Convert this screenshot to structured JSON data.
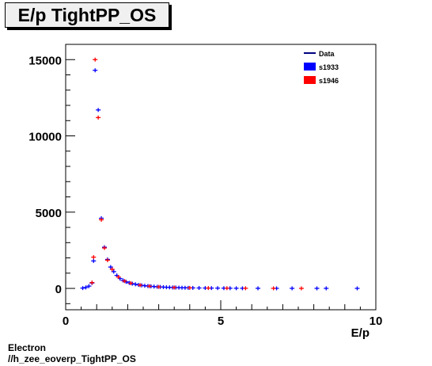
{
  "chart_data": {
    "type": "scatter",
    "title": "E/p TightPP_OS",
    "xlabel": "E/p",
    "ylabel": "",
    "xlim": [
      0,
      10
    ],
    "ylim": [
      -1400,
      16000
    ],
    "x_ticks": [
      0,
      5,
      10
    ],
    "y_ticks": [
      0,
      5000,
      10000,
      15000
    ],
    "grid": false,
    "legend_position": "top-right",
    "series": [
      {
        "name": "Data",
        "color": "#000080",
        "marker": "line",
        "points": []
      },
      {
        "name": "s1933",
        "color": "#0000ff",
        "marker": "cross",
        "points": [
          [
            0.55,
            20
          ],
          [
            0.65,
            60
          ],
          [
            0.75,
            150
          ],
          [
            0.85,
            350
          ],
          [
            0.9,
            1800
          ],
          [
            0.95,
            14300
          ],
          [
            1.05,
            11700
          ],
          [
            1.15,
            4600
          ],
          [
            1.25,
            2700
          ],
          [
            1.35,
            1900
          ],
          [
            1.45,
            1400
          ],
          [
            1.55,
            1100
          ],
          [
            1.65,
            850
          ],
          [
            1.75,
            650
          ],
          [
            1.85,
            520
          ],
          [
            1.95,
            430
          ],
          [
            2.05,
            360
          ],
          [
            2.15,
            310
          ],
          [
            2.25,
            270
          ],
          [
            2.35,
            230
          ],
          [
            2.45,
            200
          ],
          [
            2.55,
            175
          ],
          [
            2.65,
            155
          ],
          [
            2.75,
            135
          ],
          [
            2.85,
            120
          ],
          [
            2.95,
            105
          ],
          [
            3.05,
            95
          ],
          [
            3.15,
            85
          ],
          [
            3.25,
            75
          ],
          [
            3.35,
            68
          ],
          [
            3.45,
            60
          ],
          [
            3.55,
            55
          ],
          [
            3.65,
            50
          ],
          [
            3.75,
            45
          ],
          [
            3.85,
            40
          ],
          [
            3.95,
            36
          ],
          [
            4.1,
            32
          ],
          [
            4.3,
            28
          ],
          [
            4.5,
            24
          ],
          [
            4.7,
            20
          ],
          [
            4.9,
            18
          ],
          [
            5.1,
            15
          ],
          [
            5.3,
            12
          ],
          [
            5.5,
            10
          ],
          [
            5.7,
            8
          ],
          [
            6.2,
            6
          ],
          [
            6.8,
            5
          ],
          [
            7.3,
            4
          ],
          [
            8.1,
            3
          ],
          [
            8.4,
            3
          ],
          [
            9.4,
            2
          ]
        ]
      },
      {
        "name": "s1946",
        "color": "#ff0000",
        "marker": "cross",
        "points": [
          [
            0.85,
            380
          ],
          [
            0.9,
            2050
          ],
          [
            0.95,
            15000
          ],
          [
            1.05,
            11200
          ],
          [
            1.15,
            4500
          ],
          [
            1.25,
            2650
          ],
          [
            1.35,
            1850
          ],
          [
            1.5,
            1250
          ],
          [
            1.7,
            750
          ],
          [
            1.9,
            480
          ],
          [
            2.1,
            340
          ],
          [
            2.4,
            215
          ],
          [
            2.7,
            145
          ],
          [
            3.0,
            100
          ],
          [
            3.5,
            58
          ],
          [
            4.0,
            35
          ],
          [
            4.6,
            22
          ],
          [
            5.2,
            14
          ],
          [
            5.8,
            9
          ],
          [
            6.7,
            5
          ],
          [
            7.6,
            3
          ]
        ]
      }
    ],
    "annotations": [
      "Electron",
      "//h_zee_eoverp_TightPP_OS"
    ]
  }
}
